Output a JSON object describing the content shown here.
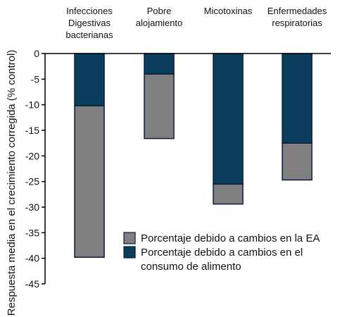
{
  "chart_data": {
    "type": "bar",
    "stacked": true,
    "title": "",
    "xlabel": "",
    "ylabel": "Respuesta media en el crecimiento corregida (% control)",
    "ylim": [
      -45,
      0
    ],
    "yticks": [
      0,
      -5,
      -10,
      -15,
      -20,
      -25,
      -30,
      -35,
      -40,
      -45
    ],
    "categories": [
      [
        "Infecciones",
        "Digestivas",
        "bacterianas"
      ],
      [
        "Pobre",
        "alojamiento"
      ],
      [
        "Micotoxinas"
      ],
      [
        "Enfermedades",
        "respiratorias"
      ]
    ],
    "series": [
      {
        "name": [
          "Porcentaje debido a cambios en el",
          "consumo de alimento"
        ],
        "color": "#0b3d5c",
        "values": [
          -10.2,
          -4.0,
          -25.5,
          -17.5
        ]
      },
      {
        "name": [
          "Porcentaje debido a cambios en la EA"
        ],
        "color": "#808080",
        "values": [
          -29.6,
          -12.6,
          -3.9,
          -7.2
        ]
      }
    ],
    "totals": [
      -39.8,
      -16.6,
      -29.4,
      -24.7
    ],
    "grid": false,
    "legend_position": "bottom-right",
    "legend_order": [
      1,
      0
    ]
  }
}
